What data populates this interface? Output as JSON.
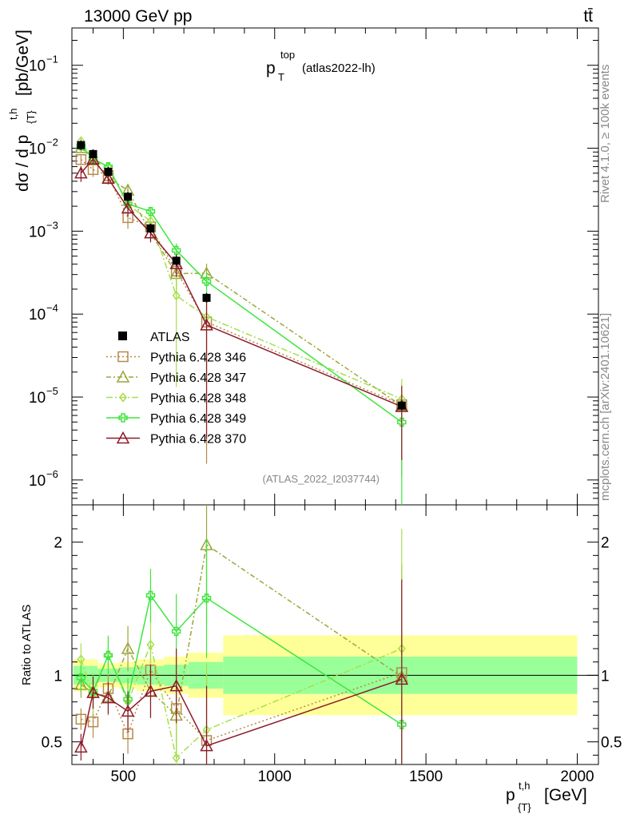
{
  "header": {
    "energy": "13000 GeV pp",
    "process": "tt̄"
  },
  "side_labels": {
    "rivet": "Rivet 4.1.0, ≥ 100k events",
    "mcplots": "mcplots.cern.ch [arXiv:2401.10621]"
  },
  "chart_data": {
    "type": "line",
    "title_main": "p",
    "title_sup": "top",
    "title_sub": "T",
    "title_tag": "(atlas2022-lh)",
    "analysis_id": "(ATLAS_2022_I2037744)",
    "ylabel_main": "dσ / d p",
    "ylabel_sup": "t,h",
    "ylabel_sub": "{T}",
    "ylabel_unit": "[pb/GeV]",
    "ratio_ylabel": "Ratio to ATLAS",
    "xlabel_main": "p",
    "xlabel_sup": "t,h",
    "xlabel_sub": "{T}",
    "xlabel_unit": "[GeV]",
    "xlim": [
      330,
      2070
    ],
    "ylim_log": [
      -6.3,
      -0.55
    ],
    "ratio_ylim": [
      0.33,
      2.28
    ],
    "x_ticks": [
      500,
      1000,
      1500,
      2000
    ],
    "x_tick_labels": [
      "500",
      "1000",
      "1500",
      "2000"
    ],
    "y_ticks_log": [
      -6,
      -5,
      -4,
      -3,
      -2,
      -1
    ],
    "y_tick_labels": [
      {
        "base": "10",
        "exp": "−6"
      },
      {
        "base": "10",
        "exp": "−5"
      },
      {
        "base": "10",
        "exp": "−4"
      },
      {
        "base": "10",
        "exp": "−3"
      },
      {
        "base": "10",
        "exp": "−2"
      },
      {
        "base": "10",
        "exp": "−1"
      }
    ],
    "ratio_ticks": [
      0.5,
      1,
      2
    ],
    "ratio_tick_labels": [
      "0.5",
      "1",
      "2"
    ],
    "data": {
      "name": "ATLAS",
      "x": [
        360,
        400,
        450,
        515,
        590,
        675,
        775,
        1420
      ],
      "y": [
        0.0109,
        0.0085,
        0.0052,
        0.0026,
        0.00108,
        0.00044,
        0.000157,
        7.9e-06
      ],
      "bins": [
        [
          335,
          385
        ],
        [
          385,
          415
        ],
        [
          415,
          485
        ],
        [
          485,
          545
        ],
        [
          545,
          635
        ],
        [
          635,
          715
        ],
        [
          715,
          830
        ],
        [
          830,
          2000
        ]
      ],
      "band_inner": [
        0.07,
        0.07,
        0.05,
        0.06,
        0.07,
        0.08,
        0.1,
        0.14
      ],
      "band_outer": [
        0.12,
        0.12,
        0.09,
        0.1,
        0.12,
        0.14,
        0.17,
        0.3
      ]
    },
    "series": [
      {
        "name": "Pythia 6.428 346",
        "color": "#b5894a",
        "dash": "2,3",
        "marker": "square",
        "x": [
          360,
          400,
          450,
          515,
          590,
          675,
          775,
          1420
        ],
        "ratio": [
          0.67,
          0.65,
          0.9,
          0.56,
          1.04,
          0.75,
          0.51,
          1.02
        ],
        "ratio_err": [
          0.08,
          0.12,
          0.12,
          0.15,
          0.2,
          0.28,
          0.5,
          0.8
        ]
      },
      {
        "name": "Pythia 6.428 347",
        "color": "#9ca53a",
        "dash": "6,3,2,3",
        "marker": "triangle",
        "x": [
          360,
          400,
          450,
          515,
          590,
          675,
          775,
          1420
        ],
        "ratio": [
          0.93,
          0.87,
          0.84,
          1.2,
          0.88,
          0.7,
          1.98,
          0.99
        ],
        "ratio_err": [
          0.1,
          0.13,
          0.14,
          0.17,
          0.2,
          0.3,
          0.6,
          0.85
        ]
      },
      {
        "name": "Pythia 6.428 348",
        "color": "#a6e04c",
        "dash": "8,3,2,3",
        "marker": "diamond",
        "x": [
          360,
          400,
          450,
          515,
          590,
          675,
          775,
          1420
        ],
        "ratio": [
          1.12,
          0.85,
          1.15,
          0.8,
          1.23,
          0.38,
          0.59,
          1.2
        ],
        "ratio_err": [
          0.12,
          0.14,
          0.15,
          0.18,
          0.22,
          0.35,
          0.5,
          0.9
        ]
      },
      {
        "name": "Pythia 6.428 349",
        "color": "#3ee63e",
        "dash": "",
        "marker": "cross",
        "x": [
          360,
          400,
          450,
          515,
          590,
          675,
          775,
          1420
        ],
        "ratio": [
          0.98,
          0.88,
          1.15,
          0.82,
          1.6,
          1.33,
          1.58,
          0.63
        ],
        "ratio_err": [
          0.1,
          0.12,
          0.14,
          0.16,
          0.2,
          0.28,
          0.45,
          0.7
        ]
      },
      {
        "name": "Pythia 6.428 370",
        "color": "#8e1a2a",
        "dash": "",
        "marker": "triangle",
        "x": [
          360,
          400,
          450,
          515,
          590,
          675,
          775,
          1420
        ],
        "ratio": [
          0.46,
          0.87,
          0.83,
          0.73,
          0.88,
          0.92,
          0.47,
          0.97
        ],
        "ratio_err": [
          0.1,
          0.12,
          0.12,
          0.15,
          0.2,
          0.28,
          0.45,
          0.75
        ]
      }
    ]
  }
}
